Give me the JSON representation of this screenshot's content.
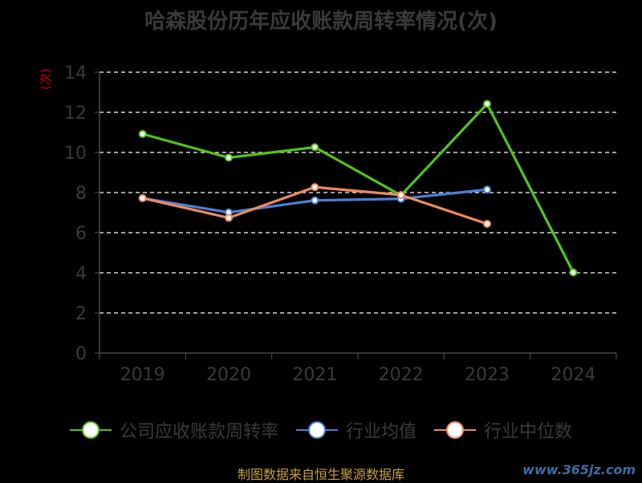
{
  "chart_data": {
    "type": "line",
    "title": "哈森股份历年应收账款周转率情况(次)",
    "ylabel": "(次)",
    "xlabel": "",
    "categories": [
      "2019",
      "2020",
      "2021",
      "2022",
      "2023",
      "2024"
    ],
    "ylim": [
      0,
      14
    ],
    "yticks": [
      "0",
      "2",
      "4",
      "6",
      "8",
      "10",
      "12",
      "14"
    ],
    "grid": true,
    "legend_position": "bottom",
    "series": [
      {
        "name": "公司应收账款周转率",
        "color": "#52c41a",
        "values": [
          10.92,
          9.74,
          10.26,
          7.86,
          12.42,
          4.02
        ]
      },
      {
        "name": "行业均值",
        "color": "#4a7fd8",
        "values": [
          7.72,
          7.01,
          7.61,
          7.69,
          8.15,
          null
        ]
      },
      {
        "name": "行业中位数",
        "color": "#f08a5d",
        "values": [
          7.72,
          6.74,
          8.27,
          7.88,
          6.44,
          null
        ]
      }
    ]
  },
  "footer": {
    "source": "制图数据来自恒生聚源数据库",
    "watermark": "www.365jz.com"
  }
}
